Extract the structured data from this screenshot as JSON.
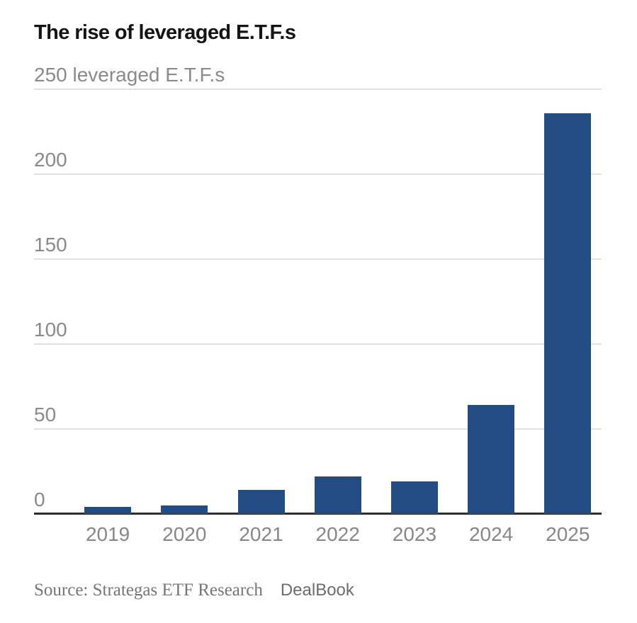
{
  "header": {
    "title": "The rise of leveraged E.T.F.s"
  },
  "chart_data": {
    "type": "bar",
    "title": "The rise of leveraged E.T.F.s",
    "categories": [
      "2019",
      "2020",
      "2021",
      "2022",
      "2023",
      "2024",
      "2025"
    ],
    "values": [
      4,
      5,
      14,
      22,
      19,
      64,
      236
    ],
    "xlabel": "",
    "ylabel": "leveraged E.T.F.s",
    "ylim": [
      0,
      250
    ],
    "yticks": [
      0,
      50,
      100,
      150,
      200,
      250
    ],
    "ytick_labels": [
      "0",
      "50",
      "100",
      "150",
      "200",
      "250 leveraged E.T.F.s"
    ],
    "grid": "horizontal",
    "legend": "none",
    "bar_color": "#234d82"
  },
  "footer": {
    "source": "Source: Strategas ETF Research",
    "byline": "DealBook"
  },
  "colors": {
    "bar": "#234d82",
    "gridline": "#e3e3e3",
    "baseline": "#2e2e2e",
    "tick_text": "#8a8a8a",
    "title_text": "#141414",
    "source_text": "#767676"
  }
}
